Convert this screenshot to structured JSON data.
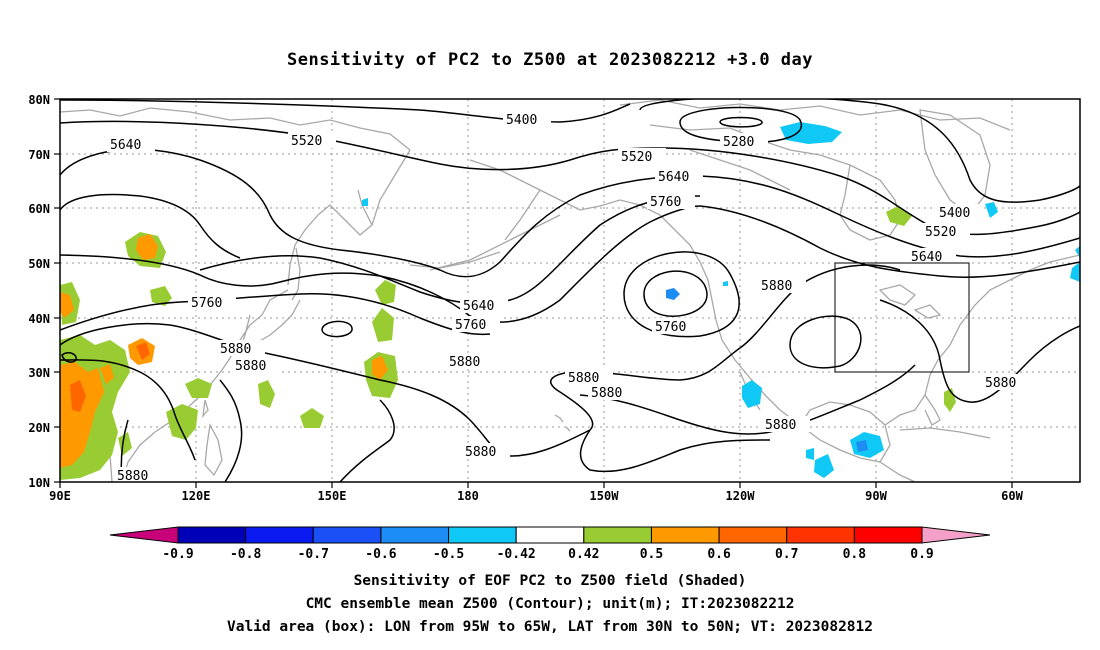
{
  "title": "Sensitivity of PC2 to Z500 at 2023082212 +3.0 day",
  "lat_ticks": [
    "80N",
    "70N",
    "60N",
    "50N",
    "40N",
    "30N",
    "20N",
    "10N"
  ],
  "lon_ticks": [
    "90E",
    "120E",
    "150E",
    "180",
    "150W",
    "120W",
    "90W",
    "60W"
  ],
  "contour_labels": [
    {
      "text": "5400",
      "id": "c5400a"
    },
    {
      "text": "5280",
      "id": "c5280"
    },
    {
      "text": "5520",
      "id": "c5520a"
    },
    {
      "text": "5640",
      "id": "c5640a"
    },
    {
      "text": "5520",
      "id": "c5520b"
    },
    {
      "text": "5640",
      "id": "c5640b"
    },
    {
      "text": "5760",
      "id": "c5760a"
    },
    {
      "text": "5400",
      "id": "c5400b"
    },
    {
      "text": "5520",
      "id": "c5520c"
    },
    {
      "text": "5640",
      "id": "c5640c"
    },
    {
      "text": "5760",
      "id": "c5760b"
    },
    {
      "text": "5880",
      "id": "c5880a"
    },
    {
      "text": "5880",
      "id": "c5880b"
    },
    {
      "text": "5640",
      "id": "c5640d"
    },
    {
      "text": "5760",
      "id": "c5760c"
    },
    {
      "text": "5880",
      "id": "c5880c"
    },
    {
      "text": "5760",
      "id": "c5760d"
    },
    {
      "text": "5880",
      "id": "c5880d"
    },
    {
      "text": "5880",
      "id": "c5880e"
    },
    {
      "text": "5880",
      "id": "c5880f"
    },
    {
      "text": "5880",
      "id": "c5880g"
    },
    {
      "text": "5880",
      "id": "c5880h"
    },
    {
      "text": "5880",
      "id": "c5880i"
    },
    {
      "text": "5880",
      "id": "c5880j"
    }
  ],
  "colorbar": {
    "labels": [
      "-0.9",
      "-0.8",
      "-0.7",
      "-0.6",
      "-0.5",
      "-0.42",
      "0.42",
      "0.5",
      "0.6",
      "0.7",
      "0.8",
      "0.9"
    ],
    "colors": [
      "#0000b8",
      "#0a1af0",
      "#1a50f5",
      "#1e8cf5",
      "#10c8f5",
      "#ffffff",
      "#99cc33",
      "#ff9900",
      "#ff6600",
      "#ff3300",
      "#ff0000"
    ],
    "low_color": "#c8007a",
    "high_color": "#f4a0c8"
  },
  "footer": {
    "line1": "Sensitivity of EOF PC2 to Z500 field (Shaded)",
    "line2": "CMC ensemble mean Z500 (Contour); unit(m); IT:2023082212",
    "line3": "Valid area (box): LON from 95W to 65W, LAT from 30N to 50N; VT: 2023082812"
  },
  "valid_box": {
    "lon_min": -95,
    "lon_max": -65,
    "lat_min": 30,
    "lat_max": 50
  }
}
